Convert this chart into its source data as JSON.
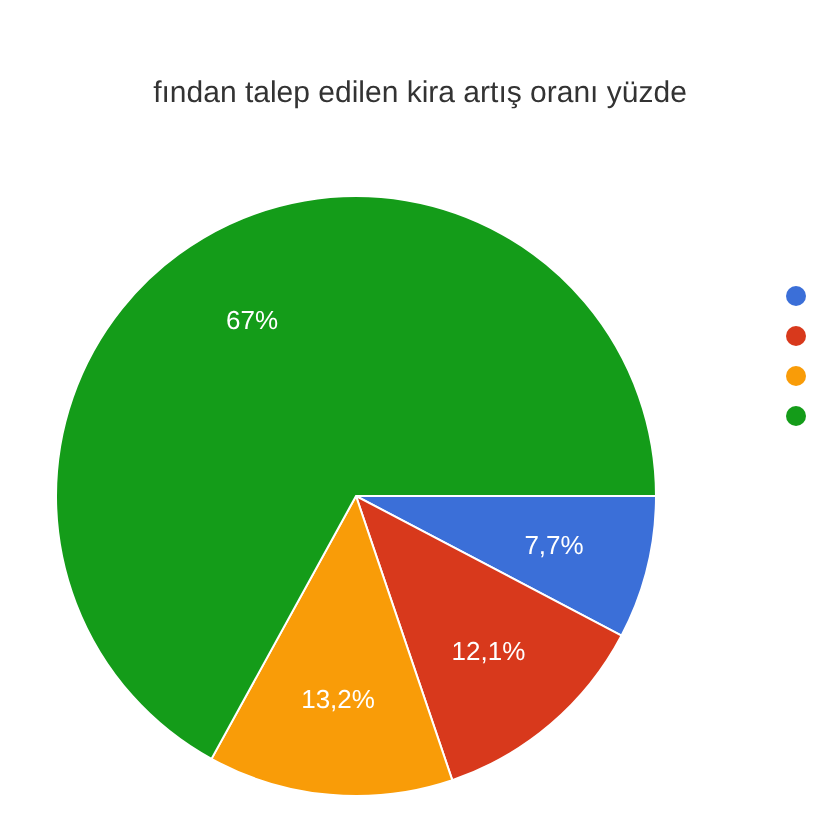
{
  "chart_data": {
    "type": "pie",
    "title": "fından talep edilen kira artış oranı yüzde",
    "categories": [
      null,
      null,
      null,
      null
    ],
    "values": [
      7.7,
      12.1,
      13.2,
      67
    ],
    "colors": [
      "#3b6fd8",
      "#d8391c",
      "#f99c08",
      "#149c19"
    ],
    "value_labels": [
      "7,7%",
      "12,1%",
      "13,2%",
      "67%"
    ]
  }
}
